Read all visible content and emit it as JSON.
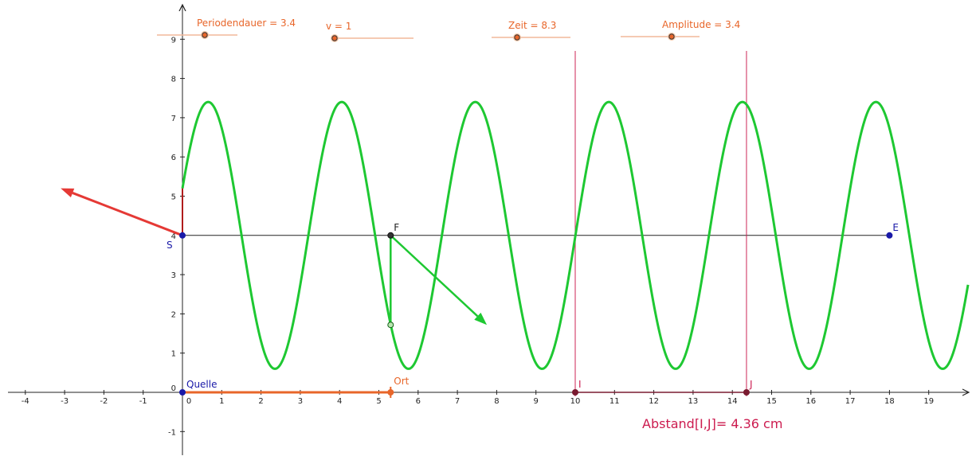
{
  "sliders": [
    {
      "id": "periodendauer",
      "label": "Periodendauer = 3.4",
      "value": 3.4
    },
    {
      "id": "v",
      "label": "v = 1",
      "value": 1
    },
    {
      "id": "zeit",
      "label": "Zeit = 8.3",
      "value": 8.3
    },
    {
      "id": "amplitude",
      "label": "Amplitude = 3.4",
      "value": 3.4
    }
  ],
  "axes": {
    "x_ticks": [
      "-4",
      "-3",
      "-2",
      "-1",
      "0",
      "1",
      "2",
      "3",
      "4",
      "5",
      "6",
      "7",
      "8",
      "9",
      "10",
      "11",
      "12",
      "13",
      "14",
      "15",
      "16",
      "17",
      "18",
      "19"
    ],
    "y_ticks": [
      "-1",
      "0",
      "1",
      "2",
      "3",
      "4",
      "5",
      "6",
      "7",
      "8",
      "9"
    ],
    "xlim": [
      -4.6,
      20
    ],
    "ylim": [
      -1.6,
      9.9
    ]
  },
  "points": {
    "S": {
      "label": "S",
      "x": 0,
      "y": 4
    },
    "E": {
      "label": "E",
      "x": 18,
      "y": 4
    },
    "F": {
      "label": "F",
      "x": 5.3,
      "y": 4
    },
    "G": {
      "label": "",
      "x": 5.3,
      "y": 1.72
    },
    "Quelle": {
      "label": "Quelle",
      "x": 0,
      "y": 0
    },
    "Ort": {
      "label": "Ort",
      "x": 5.3,
      "y": 0
    },
    "I": {
      "label": "I",
      "x": 10,
      "y": 0
    },
    "J": {
      "label": "J",
      "x": 14.36,
      "y": 0
    }
  },
  "wave": {
    "center_y": 4,
    "amplitude": 3.4,
    "wavelength": 3.4,
    "x_start": 0,
    "x_end": 20,
    "phase": 0.36
  },
  "vectors": {
    "red_arrow": {
      "from": [
        0,
        4
      ],
      "to": [
        -3.1,
        5.2
      ]
    },
    "green_arrow": {
      "from": [
        5.3,
        4
      ],
      "to": [
        7.75,
        1.72
      ]
    }
  },
  "measurement": {
    "text": "Abstand[I,J]= 4.36 cm"
  },
  "colors": {
    "wave": "#1ec832",
    "slider": "#e8662a",
    "axis": "#222222",
    "red_line": "#cc1b4f",
    "point": "#1a1aa8",
    "red_arrow": "#e53935"
  }
}
